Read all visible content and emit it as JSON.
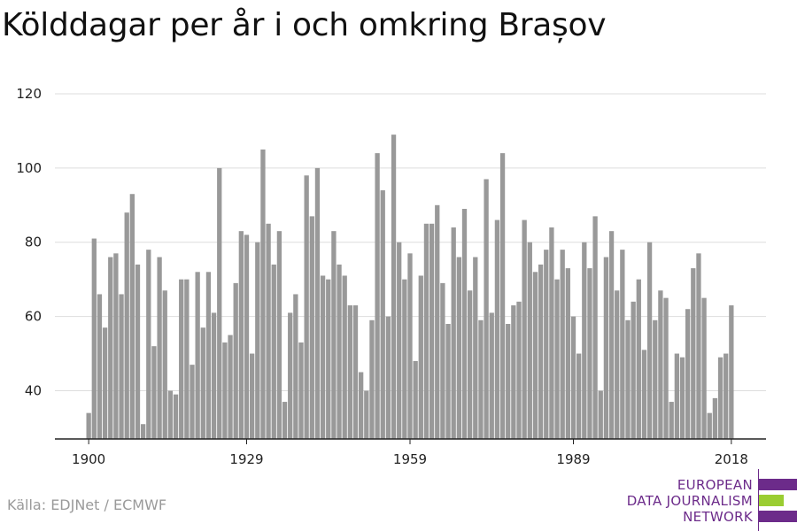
{
  "title": "Kölddagar per år i och omkring Brașov",
  "source": "Källa: EDJNet / ECMWF",
  "logo": {
    "line1": "EUROPEAN",
    "line2": "DATA JOURNALISM",
    "line3": "NETWORK",
    "colors": {
      "purple": "#6c2b8a",
      "green": "#9acd32"
    }
  },
  "colors": {
    "bar": "#999999",
    "grid": "#dddddd",
    "axis": "#222222"
  },
  "chart_data": {
    "type": "bar",
    "title": "Kölddagar per år i och omkring Brașov",
    "xlabel": "",
    "ylabel": "",
    "x_ticks": [
      "1900",
      "1929",
      "1959",
      "1989",
      "2018"
    ],
    "y_ticks": [
      40,
      60,
      80,
      100,
      120
    ],
    "ylim": [
      27,
      122
    ],
    "x_start_year": 1900,
    "values": [
      34,
      81,
      66,
      57,
      76,
      77,
      66,
      88,
      93,
      74,
      31,
      78,
      52,
      76,
      67,
      40,
      39,
      70,
      70,
      47,
      72,
      57,
      72,
      61,
      100,
      53,
      55,
      69,
      83,
      82,
      50,
      80,
      105,
      85,
      74,
      83,
      37,
      61,
      66,
      53,
      98,
      87,
      100,
      71,
      70,
      83,
      74,
      71,
      63,
      63,
      45,
      40,
      59,
      104,
      94,
      60,
      109,
      80,
      70,
      77,
      48,
      71,
      85,
      85,
      90,
      69,
      58,
      84,
      76,
      89,
      67,
      76,
      59,
      97,
      61,
      86,
      104,
      58,
      63,
      64,
      86,
      80,
      72,
      74,
      78,
      84,
      70,
      78,
      73,
      60,
      50,
      80,
      73,
      87,
      40,
      76,
      83,
      67,
      78,
      59,
      64,
      70,
      51,
      80,
      59,
      67,
      65,
      37,
      50,
      49,
      62,
      73,
      77,
      65,
      34,
      38,
      49,
      50,
      63
    ]
  }
}
